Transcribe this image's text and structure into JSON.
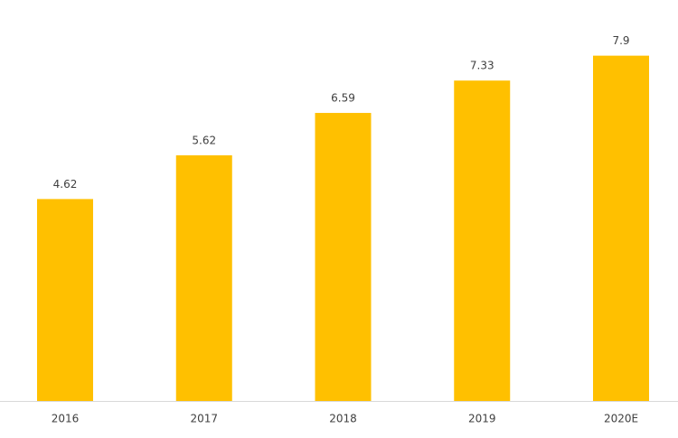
{
  "chart_data": {
    "type": "bar",
    "categories": [
      "2016",
      "2017",
      "2018",
      "2019",
      "2020E"
    ],
    "values": [
      4.62,
      5.62,
      6.59,
      7.33,
      7.9
    ],
    "color": "#FFC000"
  }
}
